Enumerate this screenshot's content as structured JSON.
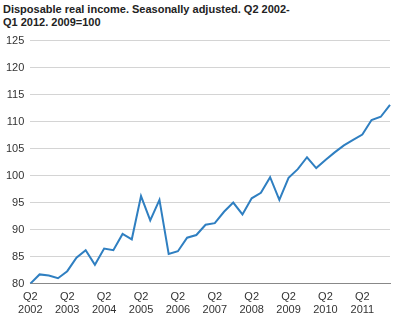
{
  "chart_data": {
    "type": "line",
    "title": "Disposable real income. Seasonally adjusted. Q2 2002-Q1 2012. 2009=100",
    "categories": [
      "Q2 2002",
      null,
      null,
      null,
      "Q2 2003",
      null,
      null,
      null,
      "Q2 2004",
      null,
      null,
      null,
      "Q2 2005",
      null,
      null,
      null,
      "Q2 2006",
      null,
      null,
      null,
      "Q2 2007",
      null,
      null,
      null,
      "Q2 2008",
      null,
      null,
      null,
      "Q2 2009",
      null,
      null,
      null,
      "Q2 2010",
      null,
      null,
      null,
      "Q2 2011",
      null,
      null,
      null
    ],
    "values": [
      80,
      81.7,
      81.5,
      81,
      82.3,
      84.8,
      86.2,
      83.5,
      86.5,
      86.2,
      89.2,
      88.2,
      96.2,
      91.7,
      95.5,
      85.5,
      86,
      88.5,
      89,
      90.9,
      91.2,
      93.3,
      95,
      92.8,
      95.8,
      96.8,
      99.7,
      95.5,
      99.6,
      101.2,
      103.4,
      101.4,
      102.9,
      104.3,
      105.6,
      106.6,
      107.6,
      110.3,
      110.9,
      113.1
    ],
    "color": "#2f7fc1",
    "ylim": [
      80,
      125
    ],
    "yticks": [
      80,
      85,
      90,
      95,
      100,
      105,
      110,
      115,
      120,
      125
    ],
    "grid": true
  }
}
